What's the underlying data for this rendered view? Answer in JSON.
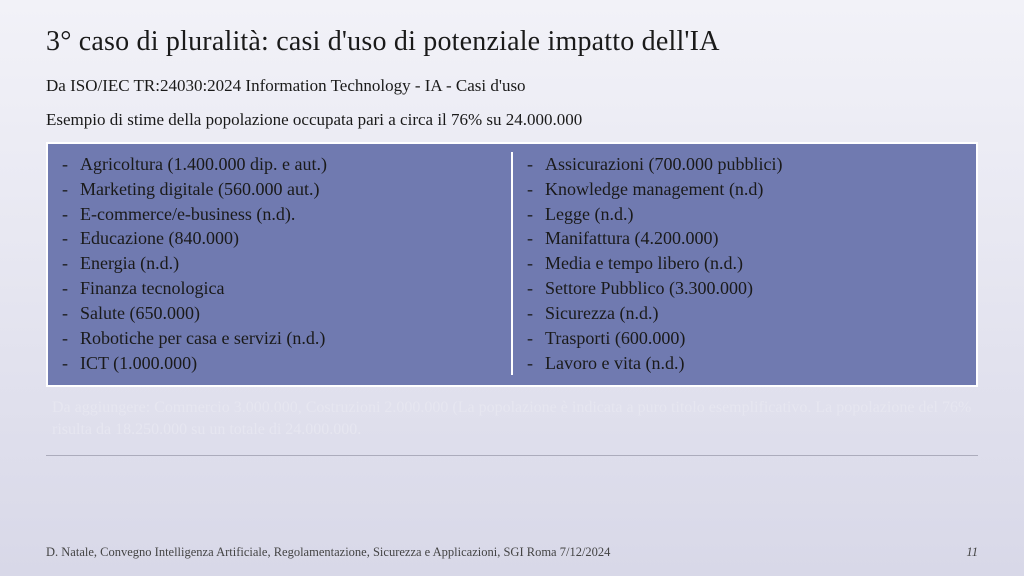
{
  "title": "3° caso di pluralità: casi d'uso di potenziale impatto dell'IA",
  "subtitle": "Da ISO/IEC TR:24030:2024 Information Technology - IA - Casi d'uso",
  "example_line": "Esempio di stime della popolazione occupata pari a circa il 76% su 24.000.000",
  "box": {
    "bg_color": "#707ab0",
    "border_color": "#ffffff",
    "left": [
      "Agricoltura (1.400.000 dip. e  aut.)",
      " Marketing digitale (560.000 aut.)",
      " E-commerce/e-business (n.d).",
      " Educazione (840.000)",
      " Energia (n.d.)",
      " Finanza tecnologica",
      " Salute (650.000)",
      " Robotiche per casa e servizi (n.d.)",
      " ICT (1.000.000)"
    ],
    "right": [
      " Assicurazioni (700.000 pubblici)",
      " Knowledge management (n.d)",
      " Legge (n.d.)",
      " Manifattura (4.200.000)",
      " Media e tempo libero (n.d.)",
      " Settore Pubblico (3.300.000)",
      " Sicurezza (n.d.)",
      " Trasporti (600.000)",
      " Lavoro e vita (n.d.)"
    ]
  },
  "note": "Da aggiungere: Commercio 3.000.000, Costruzioni 2.000.000 (La popolazione è indicata a puro titolo esemplificativo. La popolazione del 76% risulta da 18.250.000 su un totale di 24.000.000.",
  "footer_left": "D. Natale, Convegno Intelligenza Artificiale, Regolamentazione, Sicurezza e Applicazioni, SGI Roma 7/12/2024",
  "page_number": "11"
}
